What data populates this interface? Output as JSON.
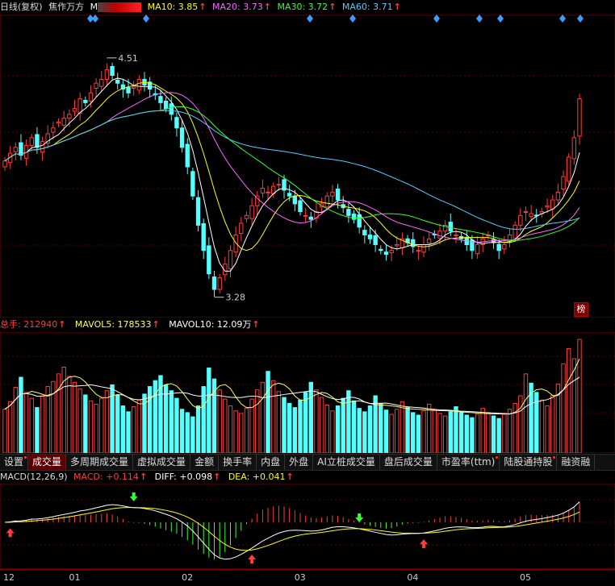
{
  "header": {
    "period": "日线(复权)",
    "stock_name": "焦作万方",
    "ma5_label": "M",
    "ma10": "MA10: 3.85",
    "ma20": "MA20: 3.73",
    "ma30": "MA30: 3.72",
    "ma60": "MA60: 3.71",
    "up_arrow": "↑"
  },
  "price_pane": {
    "high_label": "4.51",
    "low_label": "3.28",
    "badge": "榜"
  },
  "volume_pane": {
    "total": "总手: 212940",
    "mavol5": "MAVOL5: 178533",
    "mavol10": "MAVOL10: 12.09万"
  },
  "tabs": [
    {
      "label": "设置",
      "dot": true
    },
    {
      "label": "成交量",
      "active": true
    },
    {
      "label": "多周期成交量"
    },
    {
      "label": "虚拟成交量"
    },
    {
      "label": "金额"
    },
    {
      "label": "换手率"
    },
    {
      "label": "内盘"
    },
    {
      "label": "外盘"
    },
    {
      "label": "AI立桩成交量"
    },
    {
      "label": "盘后成交量"
    },
    {
      "label": "市盈率(ttm)",
      "dot": true
    },
    {
      "label": "陆股通持股",
      "dot": true
    },
    {
      "label": "融资融"
    }
  ],
  "macd_pane": {
    "title": "MACD(12,26,9)",
    "macd": "MACD: +0.114",
    "diff": "DIFF: +0.098",
    "dea": "DEA: +0.041"
  },
  "dates": [
    "12",
    "01",
    "02",
    "03",
    "04",
    "05"
  ],
  "colors": {
    "bg": "#000000",
    "up": "#ff3b3b",
    "down": "#54ffff",
    "ma5": "#ffffff",
    "ma10": "#ffff00",
    "ma20": "#ff66ff",
    "ma30": "#33ff33",
    "ma60": "#55ccff"
  },
  "chart_data": {
    "type": "candlestick",
    "high_marker": 4.51,
    "low_marker": 3.28,
    "closes": [
      3.98,
      4.02,
      4.05,
      4.01,
      4.06,
      4.1,
      4.05,
      4.08,
      4.12,
      4.15,
      4.18,
      4.2,
      4.22,
      4.25,
      4.3,
      4.28,
      4.33,
      4.38,
      4.4,
      4.45,
      4.42,
      4.38,
      4.35,
      4.33,
      4.36,
      4.4,
      4.37,
      4.35,
      4.32,
      4.28,
      4.25,
      4.22,
      4.15,
      4.05,
      3.95,
      3.8,
      3.65,
      3.52,
      3.4,
      3.32,
      3.38,
      3.45,
      3.52,
      3.6,
      3.66,
      3.7,
      3.75,
      3.8,
      3.84,
      3.82,
      3.85,
      3.86,
      3.83,
      3.8,
      3.76,
      3.72,
      3.7,
      3.68,
      3.72,
      3.76,
      3.8,
      3.82,
      3.78,
      3.74,
      3.7,
      3.68,
      3.64,
      3.6,
      3.58,
      3.55,
      3.52,
      3.5,
      3.52,
      3.55,
      3.58,
      3.56,
      3.54,
      3.52,
      3.55,
      3.58,
      3.6,
      3.62,
      3.65,
      3.62,
      3.6,
      3.58,
      3.55,
      3.52,
      3.55,
      3.58,
      3.6,
      3.56,
      3.52,
      3.55,
      3.6,
      3.65,
      3.7,
      3.72,
      3.71,
      3.7,
      3.72,
      3.75,
      3.78,
      3.82,
      3.9,
      4.0,
      4.1,
      4.3
    ],
    "volumes": [
      5.2,
      6.1,
      7.8,
      9.0,
      7.2,
      6.5,
      5.4,
      6.8,
      7.9,
      8.5,
      9.4,
      10.2,
      9.1,
      8.4,
      7.6,
      6.9,
      6.2,
      5.8,
      6.5,
      7.4,
      8.1,
      6.9,
      5.6,
      4.9,
      5.5,
      6.3,
      7.0,
      7.9,
      8.6,
      9.2,
      8.1,
      7.4,
      6.5,
      5.2,
      4.8,
      4.3,
      5.6,
      7.9,
      10.1,
      8.8,
      7.5,
      6.4,
      5.6,
      5.0,
      4.7,
      5.3,
      6.4,
      7.5,
      8.4,
      9.7,
      8.6,
      7.3,
      6.6,
      5.9,
      5.4,
      6.3,
      7.2,
      8.4,
      7.5,
      6.6,
      5.7,
      5.0,
      5.6,
      6.5,
      7.4,
      6.2,
      5.3,
      4.9,
      5.6,
      6.8,
      5.9,
      5.1,
      4.6,
      5.2,
      6.1,
      5.4,
      4.8,
      4.5,
      5.0,
      5.8,
      5.2,
      4.7,
      4.4,
      4.9,
      5.5,
      4.9,
      4.5,
      4.2,
      4.6,
      5.3,
      4.8,
      4.4,
      4.1,
      4.6,
      5.2,
      5.9,
      6.8,
      9.4,
      8.3,
      7.2,
      6.3,
      5.6,
      6.8,
      8.2,
      10.6,
      12.4,
      11.2,
      13.5
    ]
  }
}
